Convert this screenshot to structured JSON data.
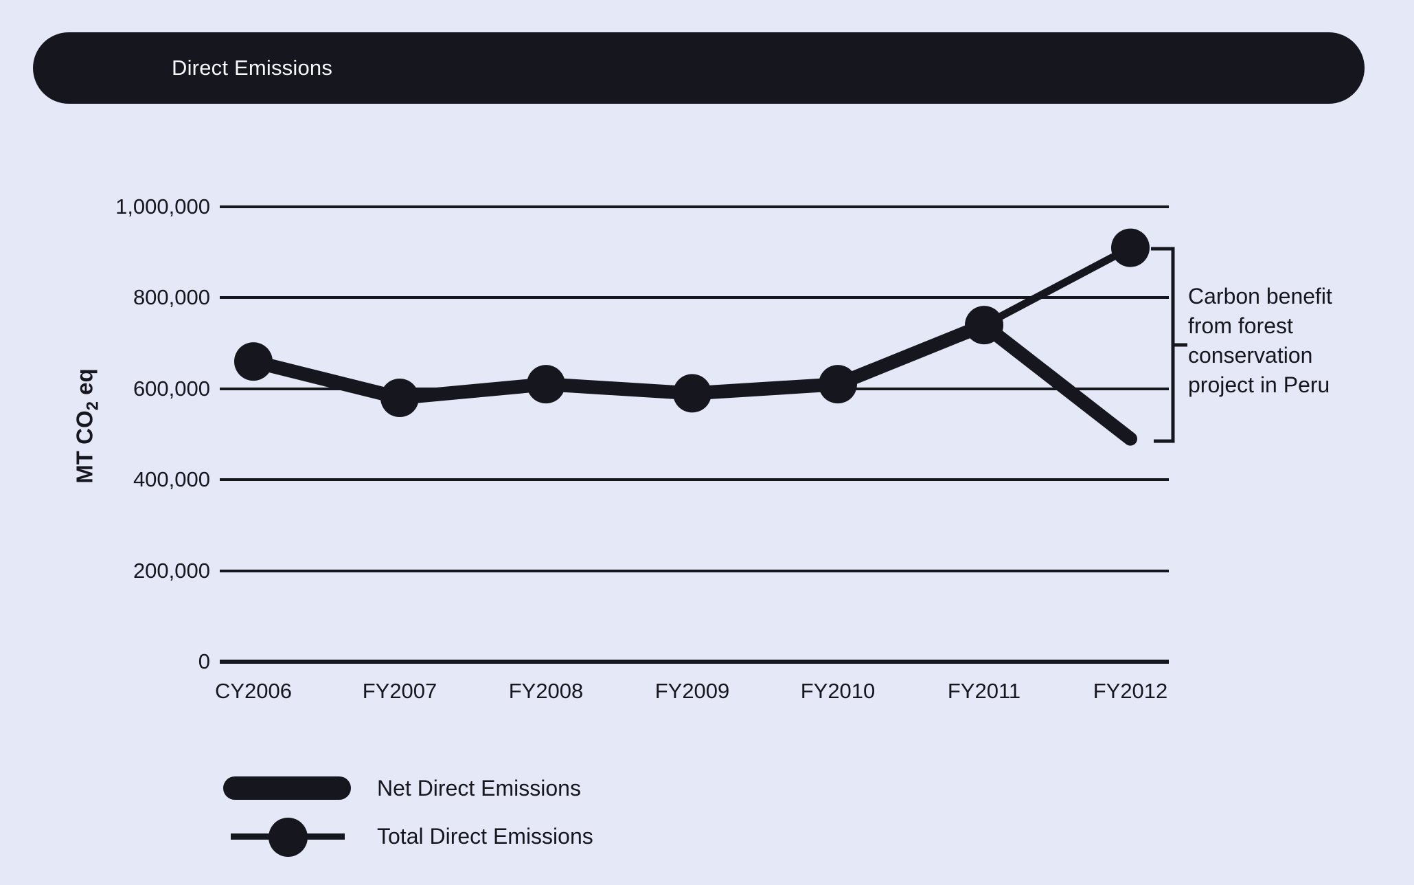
{
  "title_bar": {
    "label": "Direct Emissions"
  },
  "colors": {
    "background": "#e4e8f7",
    "ink": "#16161e",
    "title_text": "#f7f7fa"
  },
  "y_axis": {
    "label_prefix": "MT CO",
    "label_sub": "2",
    "label_suffix": " eq",
    "ticks": [
      "1,000,000",
      "800,000",
      "600,000",
      "400,000",
      "200,000",
      "0"
    ]
  },
  "chart_data": {
    "type": "line",
    "title": "Direct Emissions",
    "categories": [
      "CY2006",
      "FY2007",
      "FY2008",
      "FY2009",
      "FY2010",
      "FY2011",
      "FY2012"
    ],
    "series": [
      {
        "name": "Net Direct Emissions",
        "values": [
          660000,
          580000,
          610000,
          590000,
          610000,
          740000,
          490000
        ],
        "style": "thick-line"
      },
      {
        "name": "Total Direct Emissions",
        "values": [
          660000,
          580000,
          610000,
          590000,
          610000,
          740000,
          910000
        ],
        "style": "thin-line-with-circle-markers"
      }
    ],
    "ylabel": "MT CO2 eq",
    "ylim": [
      0,
      1000000
    ],
    "y_tick_values": [
      0,
      200000,
      400000,
      600000,
      800000,
      1000000
    ],
    "grid": "horizontal-only",
    "legend_position": "bottom-left",
    "annotation": "Carbon benefit\nfrom forest\nconservation\nproject in Peru"
  },
  "legend": {
    "items": [
      {
        "label": "Net Direct Emissions"
      },
      {
        "label": "Total Direct Emissions"
      }
    ]
  }
}
